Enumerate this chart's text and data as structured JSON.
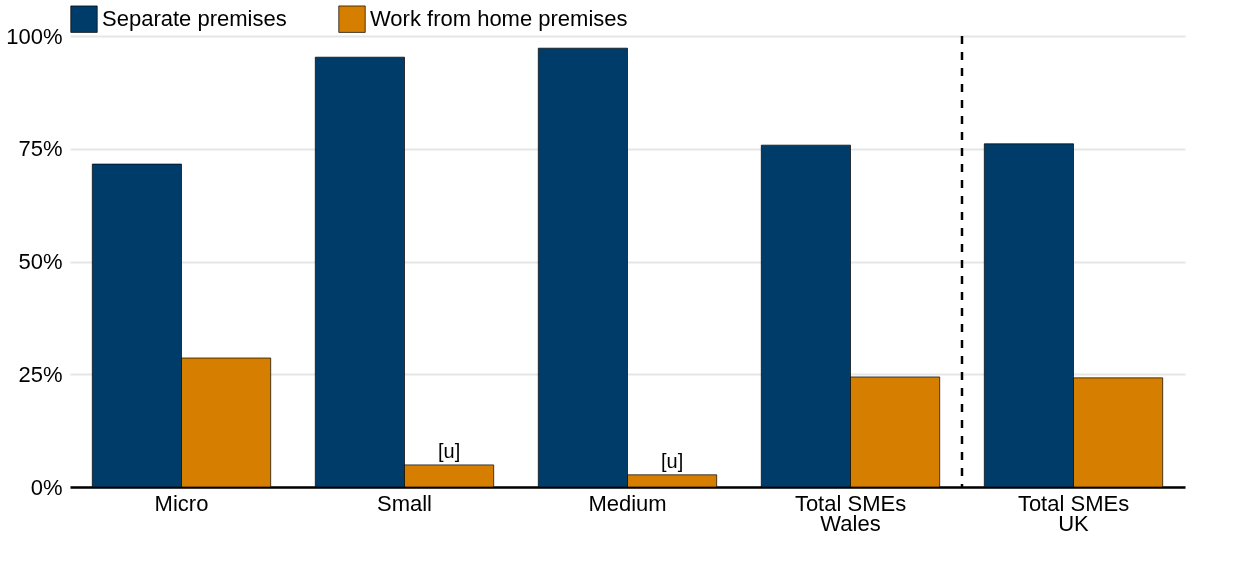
{
  "chart_data": {
    "type": "bar",
    "categories": [
      "Micro",
      "Small",
      "Medium",
      "Total SMEs\nWales",
      "Total SMEs\nUK"
    ],
    "series": [
      {
        "name": "Separate premises",
        "color": "#003c6a",
        "values": [
          71.6,
          95.3,
          97.3,
          75.8,
          76.1
        ]
      },
      {
        "name": "Work from home premises",
        "color": "#d67e00",
        "values": [
          28.6,
          4.9,
          2.7,
          24.4,
          24.2
        ]
      }
    ],
    "ylim": [
      0,
      100
    ],
    "yticks": [
      {
        "value": 0,
        "label": "0%"
      },
      {
        "value": 25,
        "label": "25%"
      },
      {
        "value": 50,
        "label": "50%"
      },
      {
        "value": 75,
        "label": "75%"
      },
      {
        "value": 100,
        "label": "100%"
      }
    ],
    "grid": "y",
    "legend": "top",
    "annotations": [
      {
        "text": "[u]",
        "x": "Small",
        "y": 4.9
      },
      {
        "text": "[u]",
        "x": "Medium",
        "y": 2.7
      }
    ],
    "ref_lines": [
      {
        "axis": "x",
        "value": "Total SMEs\nUK",
        "color": "#000000",
        "line_style": "dashed"
      }
    ]
  }
}
